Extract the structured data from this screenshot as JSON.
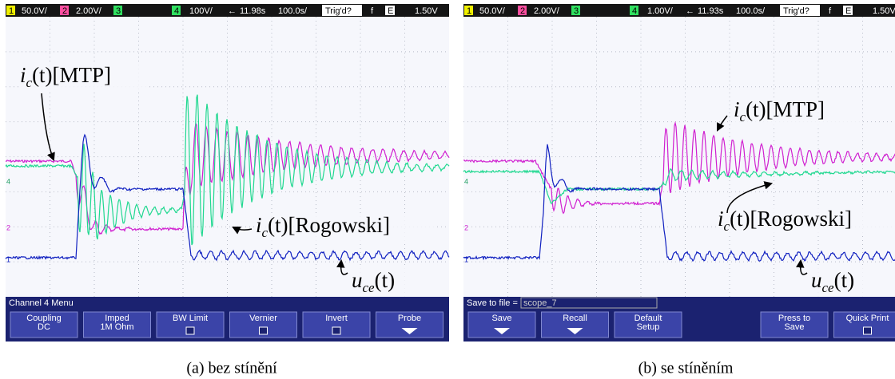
{
  "panels": [
    {
      "header": [
        "1",
        "50.0V/",
        "2",
        "2.00V/",
        "3",
        "4",
        "100V/",
        "←",
        "11.98s",
        "100.0s/",
        "Trig'd?",
        "f",
        "E",
        "1.50V"
      ],
      "channel_markers": [
        "4",
        "2",
        "1"
      ],
      "annotations": [
        {
          "var": "i",
          "sub": "c",
          "rest": "(t)[MTP]"
        },
        {
          "var": "i",
          "sub": "c",
          "rest": "(t)[Rogowski]"
        },
        {
          "var": "u",
          "sub": "ce",
          "rest": "(t)"
        }
      ],
      "menu": {
        "title": "Channel 4 Menu"
      },
      "buttons": [
        [
          "Coupling",
          "DC"
        ],
        [
          "Imped",
          "1M Ohm"
        ],
        [
          "BW Limit"
        ],
        [
          "Vernier"
        ],
        [
          "Invert"
        ],
        [
          "Probe"
        ]
      ],
      "caption": "(a) bez stínění"
    },
    {
      "header": [
        "1",
        "50.0V/",
        "2",
        "2.00V/",
        "3",
        "4",
        "1.00V/",
        "←",
        "11.93s",
        "100.0s/",
        "Trig'd?",
        "f",
        "E",
        "1.50V"
      ],
      "channel_markers": [
        "4",
        "2",
        "1"
      ],
      "annotations": [
        {
          "var": "i",
          "sub": "c",
          "rest": "(t)[MTP]"
        },
        {
          "var": "i",
          "sub": "c",
          "rest": "(t)[Rogowski]"
        },
        {
          "var": "u",
          "sub": "ce",
          "rest": "(t)"
        }
      ],
      "menu": {
        "title": "Save to file =",
        "field": "scope_7"
      },
      "buttons": [
        [
          "Save"
        ],
        [
          "Recall"
        ],
        [
          "Default",
          "Setup"
        ],
        [
          "Press to",
          "Save"
        ],
        [
          "Quick Print"
        ]
      ],
      "caption": "(b) se stíněním"
    }
  ]
}
